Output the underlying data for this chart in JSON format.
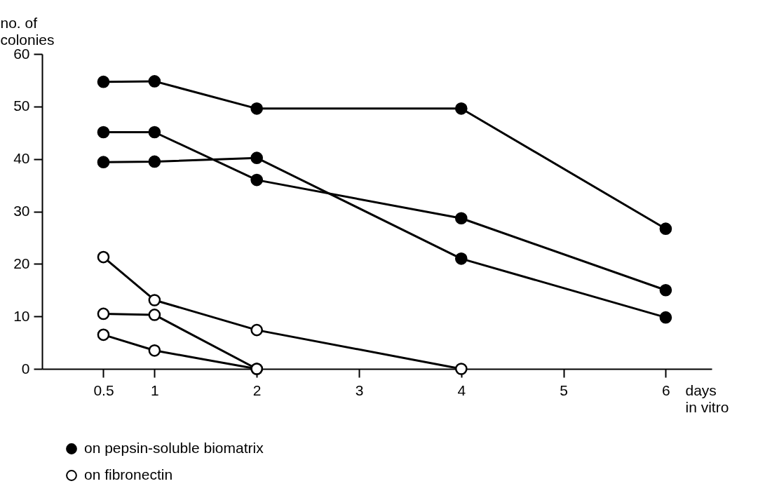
{
  "chart_data": {
    "type": "line",
    "xlabel": "days in vitro",
    "ylabel": "no. of colonies",
    "xlim": [
      -0.1,
      6.45
    ],
    "ylim": [
      0,
      60
    ],
    "xticks": [
      0.5,
      1,
      2,
      3,
      4,
      5,
      6
    ],
    "yticks": [
      0,
      10,
      20,
      30,
      40,
      50,
      60
    ],
    "grid": false,
    "legend": "bottom left",
    "marker": "circle",
    "line_style": "solid",
    "series": [
      {
        "name": "on pepsin-soluble biomatrix",
        "color": "#000000",
        "x": [
          0.5,
          1,
          2,
          4,
          6
        ],
        "values": [
          54.7,
          54.8,
          49.6,
          49.6,
          26.7
        ]
      },
      {
        "color": "#000000",
        "x": [
          0.5,
          1,
          2,
          4,
          6
        ],
        "values": [
          45.1,
          45.1,
          36,
          28.7,
          15
        ]
      },
      {
        "color": "#000000",
        "x": [
          0.5,
          1,
          2,
          4,
          6
        ],
        "values": [
          39.4,
          39.5,
          40.2,
          21,
          9.8
        ]
      },
      {
        "name": "on fibronectin",
        "color": "#ffffff",
        "x": [
          0.5,
          1,
          2,
          4
        ],
        "values": [
          21.3,
          13.1,
          7.4,
          0
        ]
      },
      {
        "color": "#ffffff",
        "x": [
          0.5,
          1,
          2
        ],
        "values": [
          10.5,
          10.3,
          0
        ]
      },
      {
        "color": "#ffffff",
        "x": [
          0.5,
          1,
          2
        ],
        "values": [
          6.5,
          3.5,
          0
        ]
      }
    ]
  }
}
